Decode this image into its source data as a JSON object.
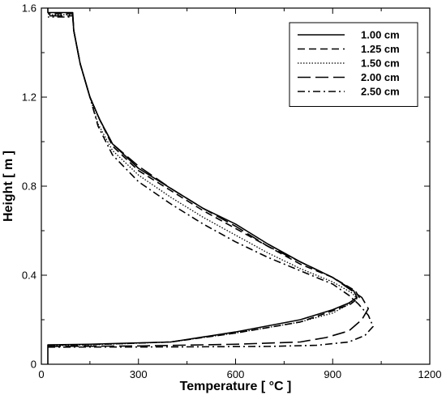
{
  "chart_data": {
    "type": "line",
    "xlabel": "Temperature [ °C ]",
    "ylabel": "Height [ m ]",
    "xlim": [
      0,
      1200
    ],
    "ylim": [
      0,
      1.6
    ],
    "xticks": [
      "0",
      "300",
      "600",
      "900",
      "1200"
    ],
    "yticks": [
      "0",
      "0.4",
      "0.8",
      "1.2",
      "1.6"
    ],
    "legend_position": "top-right",
    "grid": false,
    "series": [
      {
        "name": "1.00 cm",
        "dash": "solid",
        "points": [
          [
            20,
            0
          ],
          [
            20,
            0.087
          ],
          [
            150,
            0.09
          ],
          [
            400,
            0.1
          ],
          [
            600,
            0.145
          ],
          [
            800,
            0.2
          ],
          [
            900,
            0.245
          ],
          [
            950,
            0.275
          ],
          [
            975,
            0.3
          ],
          [
            965,
            0.33
          ],
          [
            900,
            0.39
          ],
          [
            800,
            0.46
          ],
          [
            700,
            0.54
          ],
          [
            600,
            0.63
          ],
          [
            500,
            0.7
          ],
          [
            400,
            0.79
          ],
          [
            300,
            0.88
          ],
          [
            220,
            0.99
          ],
          [
            180,
            1.1
          ],
          [
            150,
            1.2
          ],
          [
            120,
            1.35
          ],
          [
            100,
            1.5
          ],
          [
            97,
            1.58
          ],
          [
            20,
            1.58
          ],
          [
            20,
            1.6
          ]
        ]
      },
      {
        "name": "1.25 cm",
        "dash": "dashed",
        "points": [
          [
            20,
            0.085
          ],
          [
            150,
            0.088
          ],
          [
            400,
            0.1
          ],
          [
            600,
            0.14
          ],
          [
            800,
            0.19
          ],
          [
            900,
            0.24
          ],
          [
            955,
            0.27
          ],
          [
            982,
            0.3
          ],
          [
            970,
            0.33
          ],
          [
            900,
            0.39
          ],
          [
            800,
            0.45
          ],
          [
            700,
            0.53
          ],
          [
            600,
            0.61
          ],
          [
            500,
            0.69
          ],
          [
            400,
            0.78
          ],
          [
            300,
            0.87
          ],
          [
            220,
            0.98
          ],
          [
            180,
            1.1
          ],
          [
            150,
            1.2
          ],
          [
            120,
            1.35
          ],
          [
            100,
            1.5
          ],
          [
            97,
            1.575
          ],
          [
            20,
            1.575
          ]
        ]
      },
      {
        "name": "1.50 cm",
        "dash": "dotted",
        "points": [
          [
            20,
            0.083
          ],
          [
            150,
            0.087
          ],
          [
            400,
            0.1
          ],
          [
            600,
            0.14
          ],
          [
            800,
            0.19
          ],
          [
            900,
            0.23
          ],
          [
            950,
            0.27
          ],
          [
            975,
            0.295
          ],
          [
            960,
            0.32
          ],
          [
            900,
            0.37
          ],
          [
            800,
            0.43
          ],
          [
            700,
            0.5
          ],
          [
            600,
            0.58
          ],
          [
            500,
            0.66
          ],
          [
            400,
            0.75
          ],
          [
            300,
            0.85
          ],
          [
            220,
            0.96
          ],
          [
            175,
            1.08
          ],
          [
            150,
            1.2
          ],
          [
            120,
            1.35
          ],
          [
            100,
            1.5
          ],
          [
            97,
            1.57
          ],
          [
            20,
            1.57
          ]
        ]
      },
      {
        "name": "2.00 cm",
        "dash": "longdash",
        "points": [
          [
            20,
            0.08
          ],
          [
            300,
            0.082
          ],
          [
            600,
            0.09
          ],
          [
            800,
            0.1
          ],
          [
            880,
            0.12
          ],
          [
            950,
            0.15
          ],
          [
            990,
            0.2
          ],
          [
            1010,
            0.25
          ],
          [
            990,
            0.3
          ],
          [
            960,
            0.33
          ],
          [
            900,
            0.39
          ],
          [
            800,
            0.46
          ],
          [
            700,
            0.53
          ],
          [
            600,
            0.62
          ],
          [
            500,
            0.7
          ],
          [
            400,
            0.79
          ],
          [
            300,
            0.89
          ],
          [
            220,
            0.99
          ],
          [
            180,
            1.1
          ],
          [
            150,
            1.2
          ],
          [
            120,
            1.35
          ],
          [
            100,
            1.5
          ],
          [
            97,
            1.565
          ],
          [
            20,
            1.565
          ]
        ]
      },
      {
        "name": "2.50 cm",
        "dash": "dashdot",
        "points": [
          [
            20,
            0.077
          ],
          [
            400,
            0.078
          ],
          [
            700,
            0.08
          ],
          [
            850,
            0.085
          ],
          [
            950,
            0.1
          ],
          [
            1000,
            0.13
          ],
          [
            1025,
            0.17
          ],
          [
            1010,
            0.22
          ],
          [
            980,
            0.27
          ],
          [
            950,
            0.31
          ],
          [
            900,
            0.36
          ],
          [
            800,
            0.42
          ],
          [
            700,
            0.48
          ],
          [
            600,
            0.55
          ],
          [
            500,
            0.63
          ],
          [
            400,
            0.72
          ],
          [
            300,
            0.82
          ],
          [
            220,
            0.94
          ],
          [
            175,
            1.07
          ],
          [
            150,
            1.2
          ],
          [
            120,
            1.35
          ],
          [
            100,
            1.5
          ],
          [
            97,
            1.56
          ],
          [
            20,
            1.56
          ]
        ]
      }
    ]
  }
}
